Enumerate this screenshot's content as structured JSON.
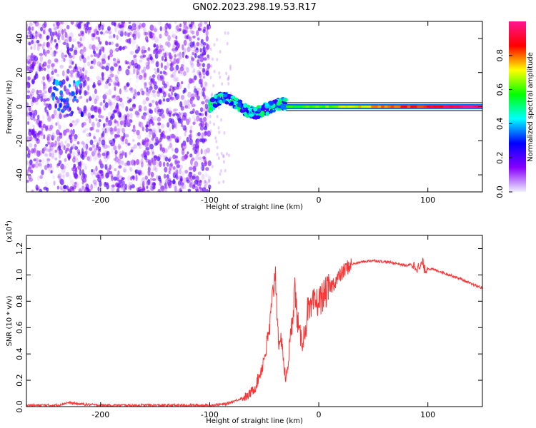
{
  "figure": {
    "title": "GN02.2023.298.19.53.R17"
  },
  "colors": {
    "snr_line": "#ff3333",
    "colorbar_stops": [
      "#eeeeff",
      "#8800ff",
      "#0000ff",
      "#00ffff",
      "#00ff00",
      "#ffff00",
      "#ff0000",
      "#ff1493"
    ]
  },
  "chart_data": [
    {
      "type": "heatmap",
      "title": "",
      "xlabel": "Height of straight line (km)",
      "ylabel": "Frequency (Hz)",
      "xlim": [
        -268,
        150
      ],
      "ylim": [
        -50,
        50
      ],
      "x_ticks": [
        "-200",
        "-100",
        "0",
        "100"
      ],
      "x_tick_values": [
        -200,
        -100,
        0,
        100
      ],
      "y_ticks": [
        "-40",
        "-20",
        "0",
        "20",
        "40"
      ],
      "y_tick_values": [
        -40,
        -20,
        0,
        20,
        40
      ],
      "colorbar": {
        "label": "Normalized spectral amplitude",
        "range": [
          0,
          1
        ],
        "ticks": [
          "0.0",
          "0.2",
          "0.4",
          "0.6",
          "0.8"
        ],
        "tick_values": [
          0.0,
          0.2,
          0.4,
          0.6,
          0.8
        ]
      },
      "features": {
        "noise_region_x": [
          -268,
          -100
        ],
        "signal_start_x": -100,
        "signal_line_frequency_hz": 0,
        "signal_line_x": [
          -30,
          150
        ],
        "wandering_signal_x": [
          -100,
          -30
        ]
      },
      "grid": false
    },
    {
      "type": "line",
      "title": "",
      "xlabel": "Height of straight line (km)",
      "ylabel": "SNR (10 * v/v)",
      "yscale_label": "(x10",
      "yscale_exp": "4",
      "yscale_close": ")",
      "xlim": [
        -268,
        150
      ],
      "ylim": [
        0,
        1.3
      ],
      "x_ticks": [
        "-200",
        "-100",
        "0",
        "100"
      ],
      "x_tick_values": [
        -200,
        -100,
        0,
        100
      ],
      "y_ticks": [
        "0.0",
        "0.2",
        "0.4",
        "0.6",
        "0.8",
        "1.0",
        "1.2"
      ],
      "y_tick_values": [
        0.0,
        0.2,
        0.4,
        0.6,
        0.8,
        1.0,
        1.2
      ],
      "series": [
        {
          "x": [
            -268,
            -240,
            -230,
            -220,
            -200,
            -150,
            -100,
            -85,
            -75,
            -65,
            -58,
            -52,
            -48,
            -45,
            -42,
            -40,
            -38,
            -36,
            -34,
            -32,
            -30,
            -28,
            -25,
            -22,
            -20,
            -18,
            -15,
            -12,
            -10,
            -8,
            -5,
            0,
            5,
            10,
            15,
            20,
            25,
            30,
            40,
            50,
            60,
            70,
            80,
            85,
            90,
            93,
            95,
            97,
            100,
            110,
            120,
            130,
            140,
            150
          ],
          "y": [
            0.01,
            0.01,
            0.03,
            0.02,
            0.01,
            0.01,
            0.01,
            0.02,
            0.05,
            0.08,
            0.15,
            0.3,
            0.45,
            0.6,
            0.85,
            1.05,
            0.7,
            0.4,
            0.55,
            0.3,
            0.2,
            0.35,
            0.6,
            0.9,
            0.7,
            0.55,
            0.5,
            0.6,
            0.75,
            0.7,
            0.78,
            0.8,
            0.85,
            0.9,
            0.95,
            1.0,
            1.05,
            1.08,
            1.1,
            1.11,
            1.1,
            1.09,
            1.07,
            1.08,
            1.06,
            1.05,
            1.1,
            1.04,
            1.05,
            1.03,
            1.0,
            0.97,
            0.93,
            0.9
          ]
        }
      ],
      "grid": false
    }
  ]
}
